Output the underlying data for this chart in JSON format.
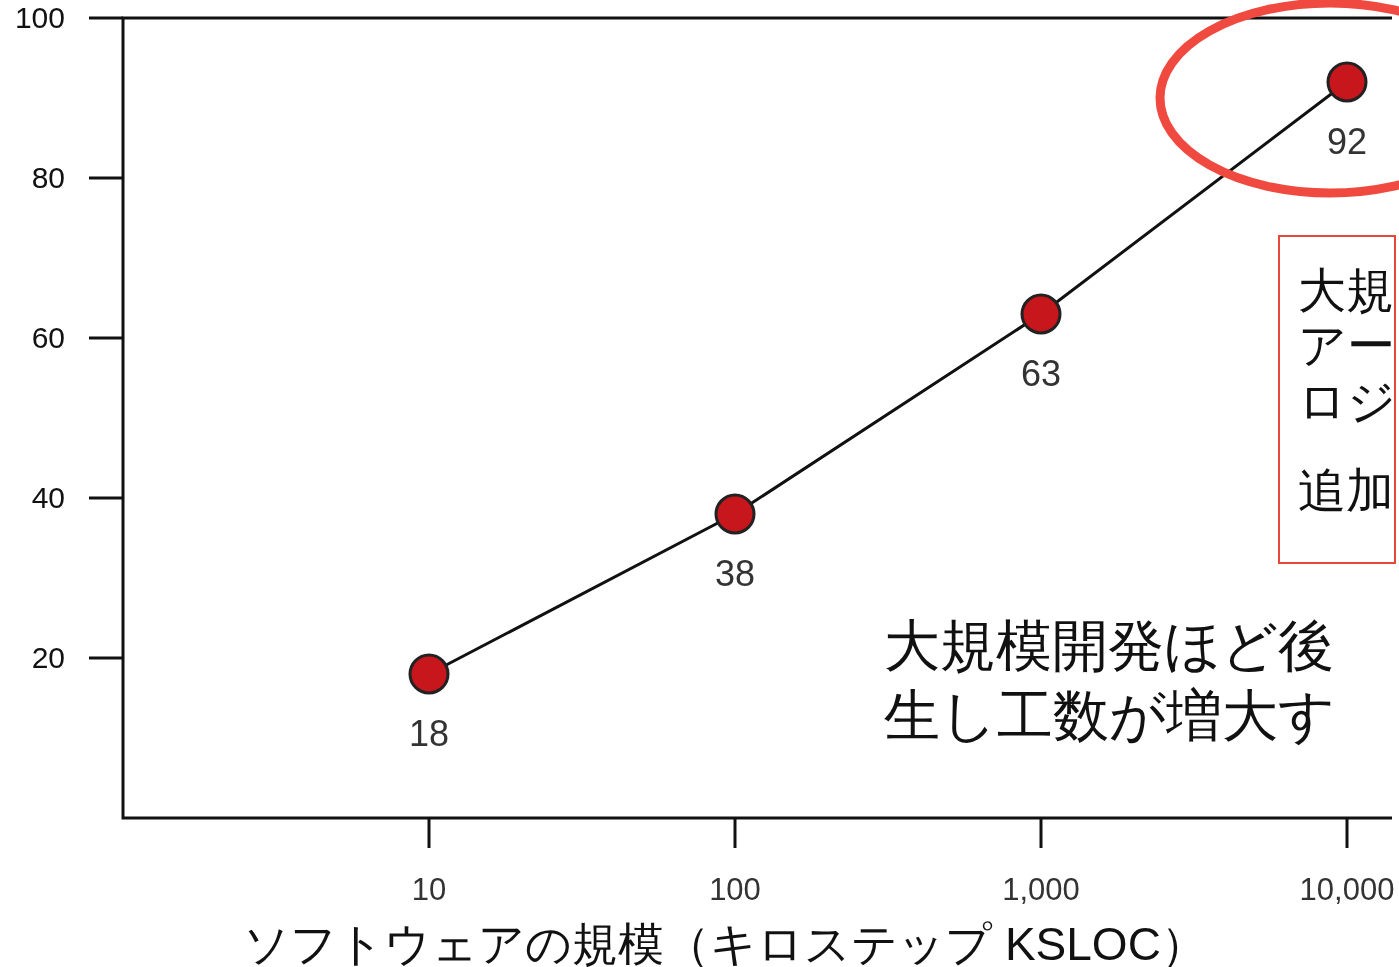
{
  "chart_data": {
    "type": "line",
    "xlabel": "ソフトウェアの規模（キロステップ KSLOC）",
    "categories": [
      "10",
      "100",
      "1,000",
      "10,000"
    ],
    "series": [
      {
        "color": "#c8161d",
        "values": [
          18,
          38,
          63,
          92
        ]
      }
    ],
    "ylim": [
      0,
      100
    ],
    "yticks": [
      20,
      40,
      60,
      80,
      100
    ],
    "data_labels": true,
    "marker": "circle",
    "line_style": "solid",
    "grid": false,
    "annotations": [
      "大規",
      "アー",
      "ロジ",
      "追加",
      "大規模開発ほど後",
      "生し工数が増大す"
    ]
  }
}
